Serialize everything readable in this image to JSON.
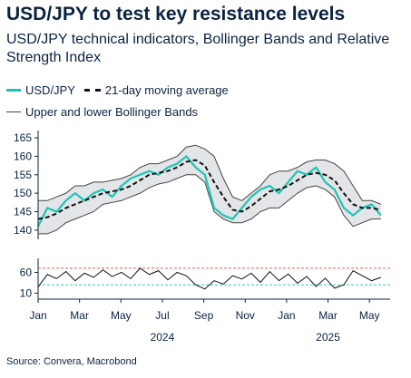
{
  "title": "USD/JPY to test key resistance levels",
  "subtitle": "USD/JPY technical indicators, Bollinger Bands and Relative Strength Index",
  "legend": {
    "usdjpy": "USD/JPY",
    "ma": "21-day moving average",
    "bands": "Upper and lower Bollinger Bands"
  },
  "source": "Source: Convera, Macrobond",
  "colors": {
    "usdjpy": "#20c4b4",
    "ma": "#111111",
    "band_fill": "#e3e5e8",
    "band_line": "#444444",
    "rsi": "#111111",
    "rsi_overbought": "#e06060",
    "rsi_oversold": "#30c8c0"
  },
  "chart_data": [
    {
      "type": "line",
      "series": [
        {
          "name": "USD/JPY",
          "x": [
            0,
            2,
            4,
            6,
            8,
            10,
            12,
            14,
            16,
            18,
            20,
            22,
            24,
            26,
            28,
            30,
            32,
            34,
            36,
            38,
            40,
            42,
            44,
            46,
            48,
            50,
            52,
            54,
            56,
            58,
            60,
            62,
            64,
            66,
            68,
            70,
            72,
            74
          ],
          "values": [
            141,
            146,
            145,
            148,
            150,
            148,
            150,
            151,
            149,
            152,
            154,
            155,
            156,
            155,
            157,
            158,
            160,
            157,
            155,
            146,
            144,
            143,
            146,
            149,
            151,
            152,
            150,
            153,
            156,
            155,
            157,
            153,
            151,
            146,
            144,
            146,
            147,
            144
          ]
        },
        {
          "name": "21-day moving average",
          "x": [
            0,
            2,
            4,
            6,
            8,
            10,
            12,
            14,
            16,
            18,
            20,
            22,
            24,
            26,
            28,
            30,
            32,
            34,
            36,
            38,
            40,
            42,
            44,
            46,
            48,
            50,
            52,
            54,
            56,
            58,
            60,
            62,
            64,
            66,
            68,
            70,
            72,
            74
          ],
          "values": [
            143,
            143.5,
            144.5,
            146,
            147,
            148,
            149,
            150,
            150.5,
            151,
            152,
            153.5,
            155,
            155.5,
            156,
            157,
            158.5,
            159,
            157.5,
            153,
            149,
            145.5,
            145,
            146.5,
            148.5,
            150.5,
            151,
            152,
            153.5,
            155,
            155.5,
            155,
            153.5,
            150,
            147,
            146,
            146,
            145.5
          ]
        },
        {
          "name": "upper-band",
          "x": [
            0,
            2,
            4,
            6,
            8,
            10,
            12,
            14,
            16,
            18,
            20,
            22,
            24,
            26,
            28,
            30,
            32,
            34,
            36,
            38,
            40,
            42,
            44,
            46,
            48,
            50,
            52,
            54,
            56,
            58,
            60,
            62,
            64,
            66,
            68,
            70,
            72,
            74
          ],
          "values": [
            148,
            148,
            149,
            150,
            152,
            152,
            153,
            153,
            153.5,
            154,
            155,
            157,
            158,
            158,
            159,
            160,
            162.5,
            163,
            162,
            160,
            154,
            149,
            148,
            150,
            152,
            155,
            156,
            156,
            157,
            158.5,
            159,
            159,
            158,
            156,
            152,
            148,
            148,
            147
          ]
        },
        {
          "name": "lower-band",
          "x": [
            0,
            2,
            4,
            6,
            8,
            10,
            12,
            14,
            16,
            18,
            20,
            22,
            24,
            26,
            28,
            30,
            32,
            34,
            36,
            38,
            40,
            42,
            44,
            46,
            48,
            50,
            52,
            54,
            56,
            58,
            60,
            62,
            64,
            66,
            68,
            70,
            72,
            74
          ],
          "values": [
            139,
            139,
            140,
            142,
            143,
            144,
            145,
            147,
            147.5,
            148,
            149,
            150,
            151.5,
            152.5,
            153,
            154,
            155,
            155,
            153,
            145,
            143,
            142,
            142,
            143,
            145,
            146,
            146,
            148,
            150,
            151.5,
            152,
            151,
            149,
            144,
            141,
            142,
            143,
            143
          ]
        }
      ],
      "yticks": [
        140,
        145,
        150,
        155,
        160,
        165
      ],
      "ylim": [
        138,
        166
      ],
      "xlim": [
        0,
        76
      ],
      "grid": false
    },
    {
      "type": "line",
      "series": [
        {
          "name": "RSI",
          "x": [
            0,
            2,
            4,
            6,
            8,
            10,
            12,
            14,
            16,
            18,
            20,
            22,
            24,
            26,
            28,
            30,
            32,
            34,
            36,
            38,
            40,
            42,
            44,
            46,
            48,
            50,
            52,
            54,
            56,
            58,
            60,
            62,
            64,
            66,
            68,
            70,
            72,
            74
          ],
          "values": [
            25,
            55,
            45,
            62,
            40,
            58,
            48,
            66,
            50,
            60,
            45,
            70,
            55,
            64,
            42,
            60,
            52,
            30,
            20,
            40,
            32,
            52,
            44,
            58,
            36,
            62,
            40,
            56,
            34,
            50,
            26,
            46,
            22,
            30,
            64,
            52,
            40,
            48
          ]
        }
      ],
      "thresholds": [
        70,
        30
      ],
      "yticks": [
        10,
        60
      ],
      "ylim": [
        0,
        85
      ],
      "xlim": [
        0,
        76
      ]
    }
  ],
  "xaxis": {
    "months": [
      "Jan",
      "Mar",
      "May",
      "Jul",
      "Sep",
      "Nov",
      "Jan",
      "Mar",
      "May"
    ],
    "years": [
      "2024",
      "2025"
    ]
  }
}
